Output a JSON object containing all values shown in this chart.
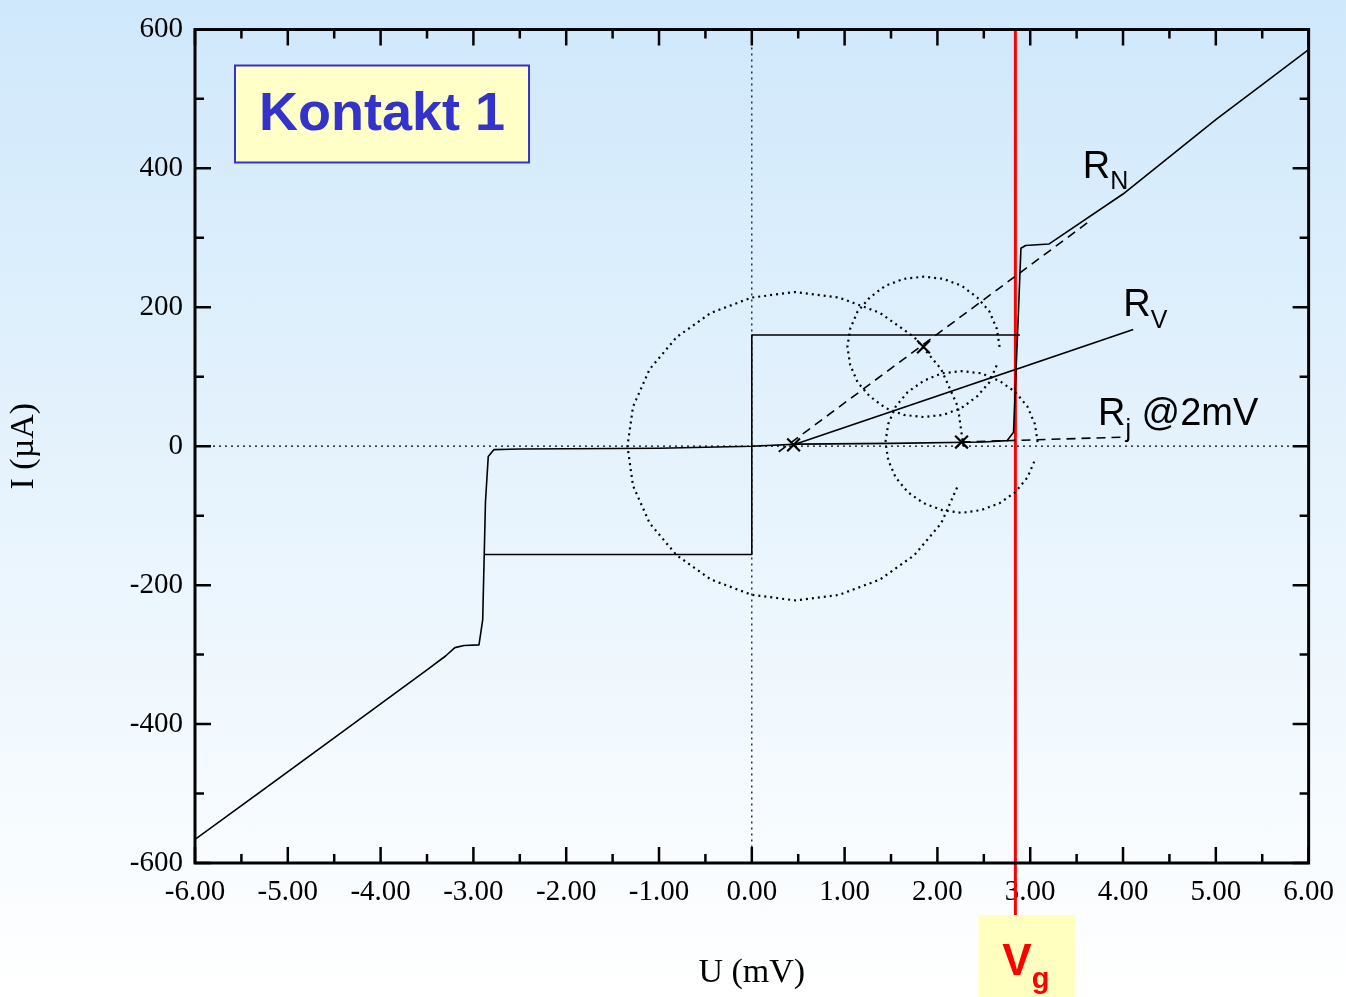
{
  "chart_data": {
    "type": "line",
    "xlabel": "U (mV)",
    "ylabel": "I (µA)",
    "xlim": [
      -6,
      6
    ],
    "ylim": [
      -600,
      600
    ],
    "xticks": [
      {
        "value": -6,
        "label": "-6.00"
      },
      {
        "value": -5,
        "label": "-5.00"
      },
      {
        "value": -4,
        "label": "-4.00"
      },
      {
        "value": -3,
        "label": "-3.00"
      },
      {
        "value": -2,
        "label": "-2.00"
      },
      {
        "value": -1,
        "label": "-1.00"
      },
      {
        "value": 0,
        "label": "0.00"
      },
      {
        "value": 1,
        "label": "1.00"
      },
      {
        "value": 2,
        "label": "2.00"
      },
      {
        "value": 3,
        "label": "3.00"
      },
      {
        "value": 4,
        "label": "4.00"
      },
      {
        "value": 5,
        "label": "5.00"
      },
      {
        "value": 6,
        "label": "6.00"
      }
    ],
    "yticks": [
      -600,
      -400,
      -200,
      0,
      200,
      400,
      600
    ],
    "grid": false,
    "legend": false,
    "marker": "none",
    "line_style": "solid",
    "series": [
      {
        "color": "#000000",
        "x": [
          -6.0,
          -4.5,
          -3.5,
          -3.3,
          -3.2,
          -3.1,
          -2.94,
          -2.9,
          -2.87,
          -2.84,
          -2.78,
          -2.5,
          -1.0,
          0,
          0.5,
          1.5,
          2.5,
          2.75,
          2.82,
          2.86,
          2.9,
          2.95,
          3.2,
          3.3,
          4.0,
          5.0,
          6.0
        ],
        "values": [
          -566,
          -420,
          -322,
          -302,
          -290,
          -287,
          -286,
          -250,
          -80,
          -15,
          -5,
          -4,
          -3,
          0,
          3,
          4,
          6,
          8,
          20,
          150,
          285,
          289,
          291,
          300,
          363,
          470,
          571
        ]
      },
      {
        "color": "#000000",
        "x": [
          -2.88,
          0,
          0,
          2.89
        ],
        "values": [
          -156,
          -156,
          160,
          160
        ]
      },
      {
        "color": "#000000",
        "line_style": "dashed",
        "x": [
          0.29,
          3.62
        ],
        "values": [
          -8,
          322
        ]
      },
      {
        "color": "#000000",
        "x": [
          0.45,
          4.11
        ],
        "values": [
          2,
          168
        ]
      },
      {
        "color": "#000000",
        "line_style": "dashed",
        "x": [
          2.26,
          4.0
        ],
        "values": [
          6,
          13
        ]
      },
      {
        "color": "#000000",
        "line_style": "dotted",
        "x": [
          2.28,
          2.22,
          2.04,
          1.75,
          1.38,
          0.94,
          0.47,
          0.0,
          -0.44,
          -0.81,
          -1.1,
          -1.28,
          -1.34,
          -1.28,
          -1.1,
          -0.81,
          -0.44,
          0.0,
          0.47,
          0.94,
          1.38,
          1.75,
          2.04,
          2.22
        ],
        "values": [
          0,
          57,
          111,
          157,
          192,
          214,
          222,
          214,
          192,
          157,
          111,
          57,
          0,
          -57,
          -111,
          -157,
          -192,
          -214,
          -222,
          -214,
          -192,
          -157,
          -111,
          -57
        ]
      },
      {
        "color": "#000000",
        "line_style": "dotted",
        "x": [
          2.67,
          2.64,
          2.56,
          2.43,
          2.26,
          2.06,
          1.85,
          1.64,
          1.44,
          1.27,
          1.14,
          1.06,
          1.03,
          1.06,
          1.14,
          1.27,
          1.44,
          1.64,
          1.85,
          2.06,
          2.26,
          2.43,
          2.56,
          2.64
        ],
        "values": [
          143,
          169,
          194,
          214,
          231,
          241,
          244,
          241,
          231,
          214,
          194,
          169,
          143,
          117,
          92,
          72,
          55,
          45,
          42,
          45,
          55,
          72,
          92,
          117
        ]
      },
      {
        "color": "#000000",
        "line_style": "dotted",
        "x": [
          3.08,
          3.05,
          2.97,
          2.84,
          2.67,
          2.47,
          2.26,
          2.05,
          1.85,
          1.68,
          1.55,
          1.47,
          1.44,
          1.47,
          1.55,
          1.68,
          1.85,
          2.05,
          2.26,
          2.47,
          2.67,
          2.84,
          2.97,
          3.05
        ],
        "values": [
          6,
          32,
          57,
          78,
          94,
          105,
          108,
          105,
          94,
          78,
          57,
          32,
          6,
          -20,
          -45,
          -66,
          -82,
          -92,
          -96,
          -92,
          -82,
          -66,
          -45,
          -20
        ]
      },
      {
        "type": "scatter",
        "marker": "cross",
        "color": "#000000",
        "x": [
          0.45,
          2.26
        ],
        "values": [
          2,
          6
        ]
      },
      {
        "type": "scatter",
        "marker": "cross",
        "color": "#000000",
        "x": [
          1.85
        ],
        "values": [
          143
        ]
      }
    ],
    "ref_lines": [
      {
        "axis": "x",
        "value": 0,
        "line_style": "dotted",
        "color": "#000000"
      },
      {
        "axis": "y",
        "value": 0,
        "line_style": "dotted",
        "color": "#000000"
      },
      {
        "axis": "x",
        "value": 2.84,
        "label": "V$_{g}$",
        "color": "#ff0000",
        "line_style": "solid"
      }
    ],
    "annotations": [
      "Kontakt 1",
      {
        "text": "R$_{N}$",
        "x": 3.62,
        "y": 322
      },
      {
        "text": "R$_{V}$",
        "x": 4.11,
        "y": 168
      },
      {
        "text": "R$_{j}$ @2mV",
        "x": 4.0,
        "y": 13
      }
    ]
  }
}
